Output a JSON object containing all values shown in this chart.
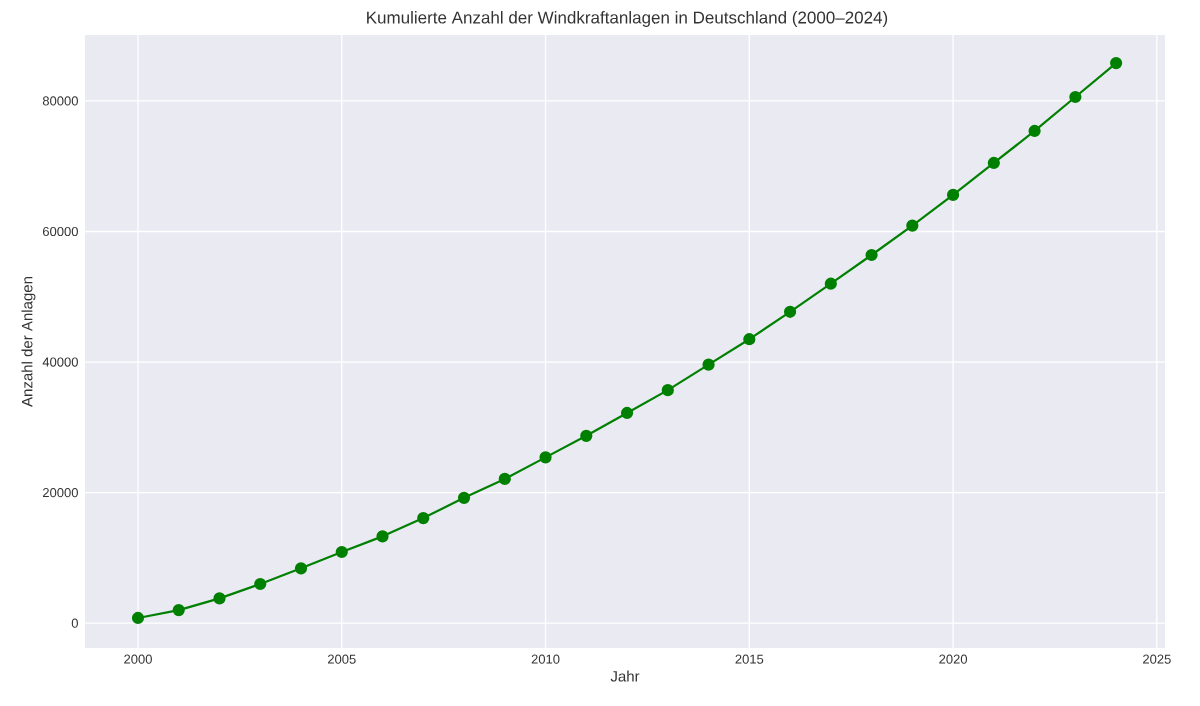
{
  "chart_data": {
    "type": "line",
    "title": "Kumulierte Anzahl der Windkraftanlagen in Deutschland (2000–2024)",
    "xlabel": "Jahr",
    "ylabel": "Anzahl der Anlagen",
    "x": [
      2000,
      2001,
      2002,
      2003,
      2004,
      2005,
      2006,
      2007,
      2008,
      2009,
      2010,
      2011,
      2012,
      2013,
      2014,
      2015,
      2016,
      2017,
      2018,
      2019,
      2020,
      2021,
      2022,
      2023,
      2024
    ],
    "series": [
      {
        "color": "#008000",
        "values": [
          800,
          2000,
          3800,
          6000,
          8400,
          10900,
          13300,
          16100,
          19200,
          22100,
          25400,
          28700,
          32200,
          35700,
          39600,
          43500,
          47700,
          52000,
          56400,
          60900,
          65600,
          70500,
          75400,
          80600,
          85800
        ]
      }
    ],
    "xlim": [
      1998.7,
      2025.2
    ],
    "ylim": [
      -3800,
      90100
    ],
    "xticks": [
      2000,
      2005,
      2010,
      2015,
      2020,
      2025
    ],
    "yticks": [
      0,
      20000,
      40000,
      60000,
      80000
    ],
    "grid": true,
    "marker": "circle",
    "line_style": "solid"
  }
}
